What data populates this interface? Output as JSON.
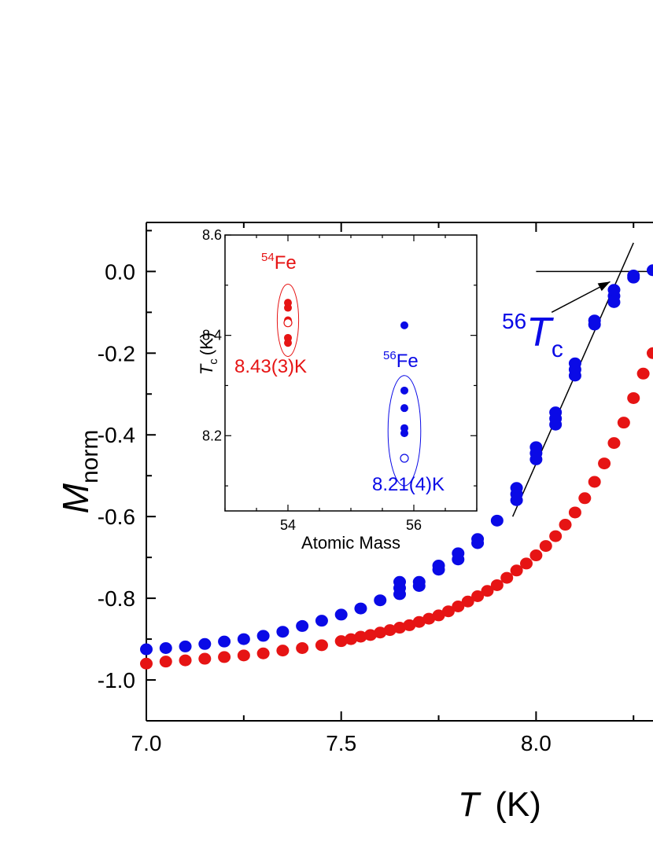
{
  "chart_data": [
    {
      "type": "scatter",
      "xlabel_italic": "T",
      "xlabel_unit": "(K)",
      "ylabel_main": "M",
      "ylabel_sub": "norm",
      "xlim": [
        7.0,
        8.3
      ],
      "ylim": [
        -1.1,
        0.12
      ],
      "x_ticks": [
        7.0,
        7.5,
        8.0
      ],
      "x_tick_labels": [
        "7.0",
        "7.5",
        "8.0"
      ],
      "y_ticks": [
        0.0,
        -0.2,
        -0.4,
        -0.6,
        -0.8,
        -1.0
      ],
      "y_tick_labels": [
        "0.0",
        "-0.2",
        "-0.4",
        "-0.6",
        "-0.8",
        "-1.0"
      ],
      "colors": {
        "blue": "#0a0ae6",
        "red": "#e61414",
        "line": "#000000"
      },
      "series": [
        {
          "color": "blue",
          "x": [
            7.0,
            7.05,
            7.1,
            7.15,
            7.2,
            7.25,
            7.3,
            7.35,
            7.4,
            7.45,
            7.5,
            7.55,
            7.6,
            7.65,
            7.65,
            7.65,
            7.7,
            7.7,
            7.75,
            7.75,
            7.8,
            7.8,
            7.85,
            7.85,
            7.9,
            7.95,
            7.95,
            7.95,
            8.0,
            8.0,
            8.0,
            8.05,
            8.05,
            8.05,
            8.1,
            8.1,
            8.1,
            8.15,
            8.15,
            8.2,
            8.2,
            8.2,
            8.25,
            8.25,
            8.3
          ],
          "y": [
            -0.925,
            -0.922,
            -0.918,
            -0.912,
            -0.906,
            -0.9,
            -0.892,
            -0.882,
            -0.868,
            -0.855,
            -0.84,
            -0.825,
            -0.805,
            -0.79,
            -0.775,
            -0.76,
            -0.77,
            -0.76,
            -0.73,
            -0.72,
            -0.705,
            -0.69,
            -0.665,
            -0.655,
            -0.61,
            -0.56,
            -0.545,
            -0.53,
            -0.46,
            -0.445,
            -0.43,
            -0.375,
            -0.36,
            -0.345,
            -0.255,
            -0.24,
            -0.225,
            -0.13,
            -0.12,
            -0.075,
            -0.06,
            -0.045,
            -0.015,
            -0.01,
            0.003
          ]
        },
        {
          "color": "red",
          "x": [
            7.0,
            7.05,
            7.1,
            7.15,
            7.2,
            7.25,
            7.3,
            7.35,
            7.4,
            7.45,
            7.5,
            7.525,
            7.55,
            7.575,
            7.6,
            7.625,
            7.65,
            7.675,
            7.7,
            7.725,
            7.75,
            7.775,
            7.8,
            7.825,
            7.85,
            7.875,
            7.9,
            7.925,
            7.95,
            7.975,
            8.0,
            8.025,
            8.05,
            8.075,
            8.1,
            8.125,
            8.15,
            8.175,
            8.2,
            8.225,
            8.25,
            8.275,
            8.3
          ],
          "y": [
            -0.96,
            -0.955,
            -0.952,
            -0.948,
            -0.944,
            -0.94,
            -0.935,
            -0.928,
            -0.922,
            -0.915,
            -0.905,
            -0.9,
            -0.894,
            -0.89,
            -0.884,
            -0.878,
            -0.872,
            -0.866,
            -0.858,
            -0.85,
            -0.842,
            -0.832,
            -0.82,
            -0.808,
            -0.795,
            -0.782,
            -0.768,
            -0.75,
            -0.732,
            -0.715,
            -0.695,
            -0.672,
            -0.648,
            -0.62,
            -0.59,
            -0.555,
            -0.515,
            -0.47,
            -0.42,
            -0.37,
            -0.31,
            -0.25,
            -0.2
          ]
        }
      ],
      "fit_line": {
        "x": [
          7.94,
          8.25
        ],
        "y": [
          -0.6,
          0.07
        ]
      },
      "reference_line": {
        "x": [
          8.0,
          8.3
        ],
        "y": [
          0.0,
          0.0
        ]
      },
      "annotation": {
        "text_sup": "56",
        "text_main": "T",
        "text_sub": "c",
        "arrow_from": [
          8.04,
          -0.1
        ],
        "arrow_to": [
          8.19,
          -0.025
        ]
      }
    },
    {
      "type": "scatter",
      "xlabel": "Atomic Mass",
      "ylabel_main": "T",
      "ylabel_sub": "c",
      "ylabel_unit": "(K)",
      "xlim": [
        53.0,
        57.0
      ],
      "ylim": [
        8.05,
        8.6
      ],
      "x_ticks": [
        54,
        56
      ],
      "x_tick_labels": [
        "54",
        "56"
      ],
      "y_ticks": [
        8.2,
        8.4,
        8.6
      ],
      "y_tick_labels": [
        "8.2",
        "8.4",
        "8.6"
      ],
      "groups": [
        {
          "color": "red",
          "label_sup": "54",
          "label_main": "Fe",
          "value_label": "8.43(3)K",
          "x": 54.0,
          "filled_y": [
            8.465,
            8.455,
            8.43,
            8.425,
            8.395,
            8.385
          ],
          "open_y": [
            8.425
          ],
          "ellipse_center": [
            54.0,
            8.43
          ],
          "ellipse_radii": [
            0.17,
            0.072
          ]
        },
        {
          "color": "blue",
          "label_sup": "56",
          "label_main": "Fe",
          "value_label": "8.21(4)K",
          "x": 55.85,
          "filled_y": [
            8.42,
            8.29,
            8.255,
            8.215,
            8.205
          ],
          "open_y": [
            8.155
          ],
          "ellipse_center": [
            55.85,
            8.21
          ],
          "ellipse_radii": [
            0.26,
            0.11
          ]
        }
      ]
    }
  ]
}
